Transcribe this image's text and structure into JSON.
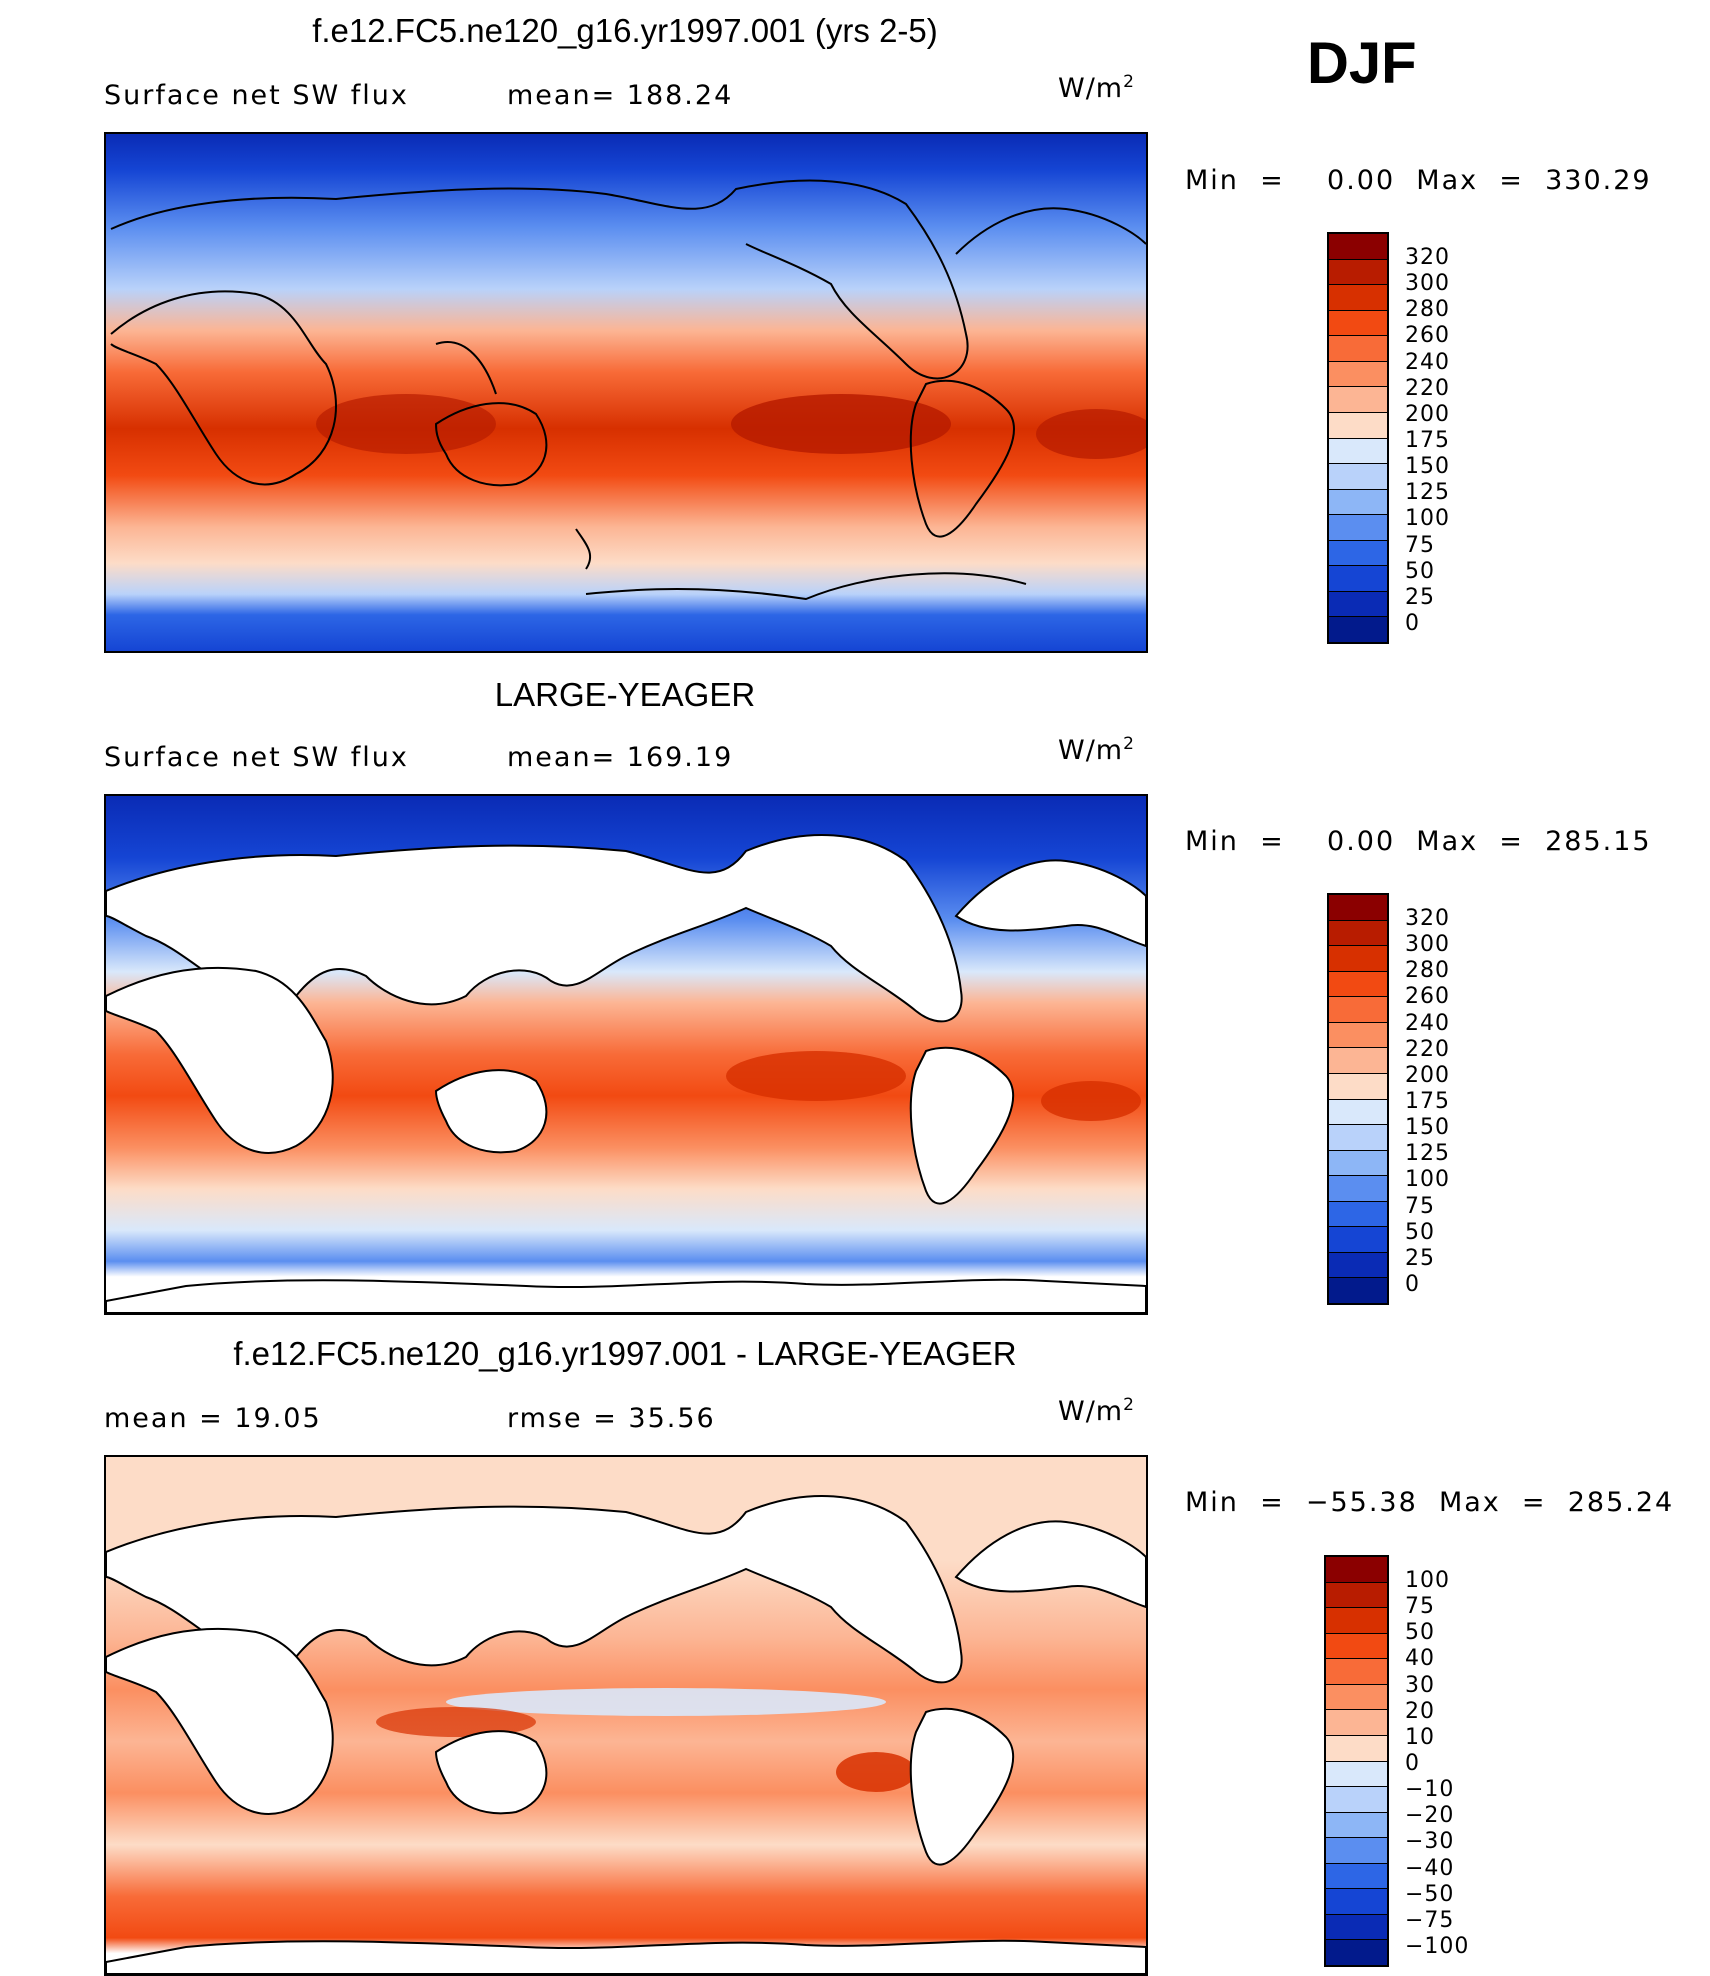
{
  "season": "DJF",
  "units_base": "W/m",
  "units_exp": "2",
  "panels": [
    {
      "title": "f.e12.FC5.ne120_g16.yr1997.001 (yrs 2-5)",
      "left_stat": "Surface net SW flux",
      "right_stat": "mean=  188.24",
      "minmax": "Min  =    0.00  Max  =  330.29"
    },
    {
      "title": "LARGE-YEAGER",
      "left_stat": "Surface net SW flux",
      "right_stat": "mean=  169.19",
      "minmax": "Min  =    0.00  Max  =  285.15"
    },
    {
      "title": "f.e12.FC5.ne120_g16.yr1997.001 - LARGE-YEAGER",
      "left_stat": "mean  =    19.05",
      "right_stat": "rmse  =    35.56",
      "minmax": "Min  =  −55.38  Max  =  285.24"
    }
  ],
  "colorbars": [
    {
      "labels": [
        "320",
        "300",
        "280",
        "260",
        "240",
        "220",
        "200",
        "175",
        "150",
        "125",
        "100",
        "75",
        "50",
        "25",
        "0"
      ],
      "colors": [
        "#8b0000",
        "#b81c00",
        "#d73000",
        "#f24a12",
        "#f86b38",
        "#fb8f61",
        "#fcb594",
        "#fddcc7",
        "#d9e8fb",
        "#b9d2fa",
        "#8db6f6",
        "#5b8ef0",
        "#2d66e6",
        "#1545d4",
        "#0a2bb5",
        "#021a8c"
      ]
    },
    {
      "labels": [
        "320",
        "300",
        "280",
        "260",
        "240",
        "220",
        "200",
        "175",
        "150",
        "125",
        "100",
        "75",
        "50",
        "25",
        "0"
      ],
      "colors": [
        "#8b0000",
        "#b81c00",
        "#d73000",
        "#f24a12",
        "#f86b38",
        "#fb8f61",
        "#fcb594",
        "#fddcc7",
        "#d9e8fb",
        "#b9d2fa",
        "#8db6f6",
        "#5b8ef0",
        "#2d66e6",
        "#1545d4",
        "#0a2bb5",
        "#021a8c"
      ]
    },
    {
      "labels": [
        "100",
        "75",
        "50",
        "40",
        "30",
        "20",
        "10",
        "0",
        "−10",
        "−20",
        "−30",
        "−40",
        "−50",
        "−75",
        "−100"
      ],
      "colors": [
        "#8b0000",
        "#b81c00",
        "#d73000",
        "#f24a12",
        "#f86b38",
        "#fb8f61",
        "#fcb594",
        "#fddcc7",
        "#d9e8fb",
        "#b9d2fa",
        "#8db6f6",
        "#5b8ef0",
        "#2d66e6",
        "#1545d4",
        "#0a2bb5",
        "#021a8c"
      ]
    }
  ]
}
